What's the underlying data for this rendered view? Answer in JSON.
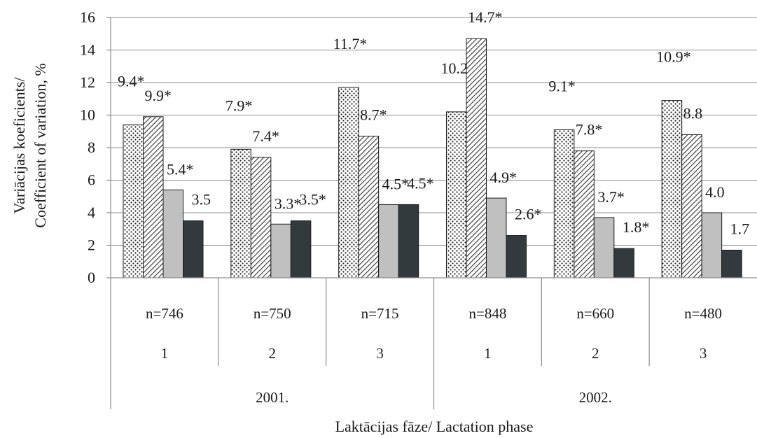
{
  "chart_data": {
    "type": "bar",
    "title": "",
    "ylabel_line1": "Variācijas koeficients/",
    "ylabel_line2": "Coefficient of variation, %",
    "xlabel": "Laktācijas fāze/ Lactation phase",
    "ylim": [
      0,
      16
    ],
    "yticks": [
      0,
      2,
      4,
      6,
      8,
      10,
      12,
      14,
      16
    ],
    "grid": true,
    "legend": "none",
    "groups": [
      {
        "year": "2001.",
        "phase": "1",
        "n": "n=746",
        "values": [
          9.4,
          9.9,
          5.4,
          3.5
        ],
        "labels": [
          "9.4*",
          "9.9*",
          "5.4*",
          "3.5"
        ]
      },
      {
        "year": "2001.",
        "phase": "2",
        "n": "n=750",
        "values": [
          7.9,
          7.4,
          3.3,
          3.5
        ],
        "labels": [
          "7.9*",
          "7.4*",
          "3.3*",
          "3.5*"
        ]
      },
      {
        "year": "2001.",
        "phase": "3",
        "n": "n=715",
        "values": [
          11.7,
          8.7,
          4.5,
          4.5
        ],
        "labels": [
          "11.7*",
          "8.7*",
          "4.5*",
          "4.5*"
        ]
      },
      {
        "year": "2002.",
        "phase": "1",
        "n": "n=848",
        "values": [
          10.2,
          14.7,
          4.9,
          2.6
        ],
        "labels": [
          "10.2",
          "14.7*",
          "4.9*",
          "2.6*"
        ]
      },
      {
        "year": "2002.",
        "phase": "2",
        "n": "n=660",
        "values": [
          9.1,
          7.8,
          3.7,
          1.8
        ],
        "labels": [
          "9.1*",
          "7.8*",
          "3.7*",
          "1.8*"
        ]
      },
      {
        "year": "2002.",
        "phase": "3",
        "n": "n=480",
        "values": [
          10.9,
          8.8,
          4.0,
          1.7
        ],
        "labels": [
          "10.9*",
          "8.8",
          "4.0",
          "1.7"
        ]
      }
    ],
    "years": [
      "2001.",
      "2002."
    ],
    "series_styles": [
      {
        "pattern": "dots",
        "fill": "#ffffff",
        "mark": "#222222"
      },
      {
        "pattern": "diagonal",
        "fill": "#ffffff",
        "mark": "#333333"
      },
      {
        "pattern": "solid",
        "fill": "#c0c0c0",
        "mark": "#c0c0c0"
      },
      {
        "pattern": "solid",
        "fill": "#333a3e",
        "mark": "#333a3e"
      }
    ]
  }
}
